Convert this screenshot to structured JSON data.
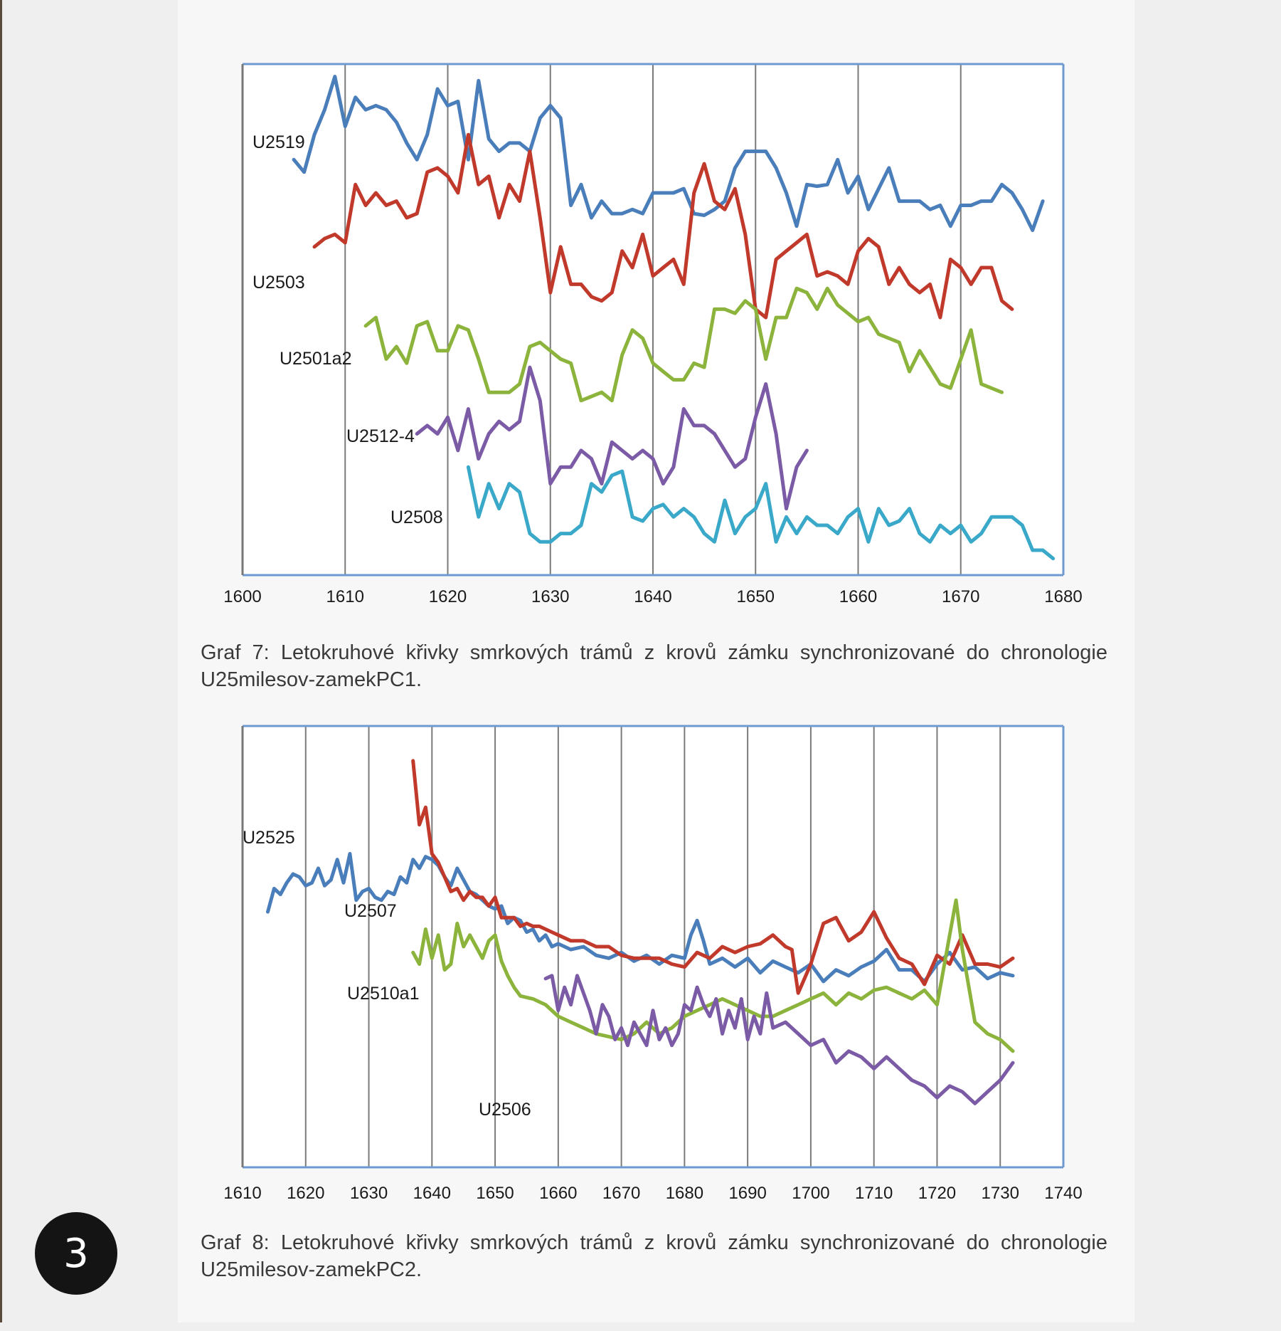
{
  "badge": "3",
  "chart_data": [
    {
      "type": "line",
      "title": "",
      "xlabel": "",
      "ylabel": "",
      "xlim": [
        1600,
        1680
      ],
      "xticks": [
        1600,
        1610,
        1620,
        1630,
        1640,
        1650,
        1660,
        1670,
        1680
      ],
      "grid": "vertical",
      "legend": "labels placed next to each curve",
      "series": [
        {
          "name": "U2519",
          "color": "#4a7ebb",
          "x_start": 1605,
          "values": [
            1.1,
            0.95,
            1.4,
            1.7,
            2.1,
            1.5,
            1.85,
            1.7,
            1.75,
            1.7,
            1.55,
            1.3,
            1.1,
            1.4,
            1.95,
            1.75,
            1.8,
            1.1,
            2.05,
            1.35,
            1.2,
            1.3,
            1.3,
            1.2,
            1.6,
            1.75,
            1.6,
            0.55,
            0.8,
            0.4,
            0.6,
            0.45,
            0.45,
            0.5,
            0.45,
            0.7,
            0.7,
            0.7,
            0.75,
            0.45,
            0.43,
            0.5,
            0.6,
            1.0,
            1.2,
            1.2,
            1.2,
            1.0,
            0.7,
            0.3,
            0.8,
            0.78,
            0.8,
            1.1,
            0.7,
            0.9,
            0.5,
            0.75,
            1.0,
            0.6,
            0.6,
            0.6,
            0.5,
            0.55,
            0.3,
            0.55,
            0.55,
            0.6,
            0.6,
            0.8,
            0.7,
            0.5,
            0.25,
            0.6
          ]
        },
        {
          "name": "U2503",
          "color": "#c0392b",
          "x_start": 1607,
          "values": [
            0.05,
            0.15,
            0.2,
            0.1,
            0.8,
            0.55,
            0.7,
            0.55,
            0.6,
            0.4,
            0.45,
            0.95,
            1.0,
            0.9,
            0.7,
            1.4,
            0.8,
            0.9,
            0.4,
            0.8,
            0.6,
            1.2,
            0.4,
            -0.5,
            0.05,
            -0.4,
            -0.4,
            -0.55,
            -0.6,
            -0.5,
            0.0,
            -0.2,
            0.2,
            -0.3,
            -0.2,
            -0.1,
            -0.4,
            0.7,
            1.05,
            0.6,
            0.5,
            0.75,
            0.2,
            -0.7,
            -0.8,
            -0.1,
            0.0,
            0.1,
            0.2,
            -0.3,
            -0.25,
            -0.3,
            -0.4,
            0.0,
            0.15,
            0.05,
            -0.4,
            -0.2,
            -0.4,
            -0.5,
            -0.4,
            -0.8,
            -0.1,
            -0.2,
            -0.4,
            -0.2,
            -0.2,
            -0.6,
            -0.7
          ]
        },
        {
          "name": "U2501a2",
          "color": "#8cb43c",
          "x_start": 1612,
          "values": [
            -0.9,
            -0.8,
            -1.3,
            -1.15,
            -1.35,
            -0.9,
            -0.85,
            -1.2,
            -1.2,
            -0.9,
            -0.95,
            -1.3,
            -1.7,
            -1.7,
            -1.7,
            -1.6,
            -1.15,
            -1.1,
            -1.2,
            -1.3,
            -1.35,
            -1.8,
            -1.75,
            -1.7,
            -1.8,
            -1.25,
            -0.95,
            -1.05,
            -1.35,
            -1.45,
            -1.55,
            -1.55,
            -1.35,
            -1.4,
            -0.7,
            -0.7,
            -0.75,
            -0.6,
            -0.7,
            -1.3,
            -0.8,
            -0.8,
            -0.45,
            -0.5,
            -0.7,
            -0.45,
            -0.65,
            -0.75,
            -0.85,
            -0.8,
            -1.0,
            -1.05,
            -1.1,
            -1.45,
            -1.2,
            -1.4,
            -1.6,
            -1.65,
            -1.3,
            -0.95,
            -1.6,
            -1.65,
            -1.7
          ]
        },
        {
          "name": "U2512-4",
          "color": "#7b5aa6",
          "x_start": 1617,
          "values": [
            -2.2,
            -2.1,
            -2.2,
            -2.0,
            -2.4,
            -1.9,
            -2.5,
            -2.2,
            -2.05,
            -2.15,
            -2.05,
            -1.4,
            -1.8,
            -2.8,
            -2.6,
            -2.6,
            -2.4,
            -2.5,
            -2.8,
            -2.3,
            -2.4,
            -2.5,
            -2.4,
            -2.5,
            -2.8,
            -2.6,
            -1.9,
            -2.1,
            -2.1,
            -2.2,
            -2.4,
            -2.6,
            -2.5,
            -2.0,
            -1.6,
            -2.2,
            -3.1,
            -2.6,
            -2.4
          ]
        },
        {
          "name": "U2508",
          "color": "#3aa8c8",
          "x_start": 1622,
          "values": [
            -2.6,
            -3.2,
            -2.8,
            -3.1,
            -2.8,
            -2.9,
            -3.4,
            -3.5,
            -3.5,
            -3.4,
            -3.4,
            -3.3,
            -2.8,
            -2.9,
            -2.7,
            -2.65,
            -3.2,
            -3.25,
            -3.1,
            -3.05,
            -3.2,
            -3.1,
            -3.2,
            -3.4,
            -3.5,
            -3.0,
            -3.4,
            -3.2,
            -3.1,
            -2.8,
            -3.5,
            -3.2,
            -3.4,
            -3.2,
            -3.3,
            -3.3,
            -3.4,
            -3.2,
            -3.1,
            -3.5,
            -3.1,
            -3.3,
            -3.25,
            -3.1,
            -3.4,
            -3.5,
            -3.3,
            -3.4,
            -3.3,
            -3.5,
            -3.4,
            -3.2,
            -3.2,
            -3.2,
            -3.3,
            -3.6,
            -3.6,
            -3.7
          ]
        }
      ],
      "annotations": [
        "U2519",
        "U2503",
        "U2501a2",
        "U2512-4",
        "U2508"
      ],
      "caption_line1": "Graf 7: Letokruhové křivky smrkových trámů z krovů zámku synchronizované do chronologie",
      "caption_line2": "U25milesov-zamekPC1."
    },
    {
      "type": "line",
      "title": "",
      "xlabel": "",
      "ylabel": "",
      "xlim": [
        1610,
        1740
      ],
      "xticks": [
        1610,
        1620,
        1630,
        1640,
        1650,
        1660,
        1670,
        1680,
        1690,
        1700,
        1710,
        1720,
        1730,
        1740
      ],
      "grid": "vertical",
      "legend": "labels placed next to each curve",
      "series": [
        {
          "name": "U2525",
          "color": "#4a7ebb",
          "x": [
            1614,
            1615,
            1616,
            1617,
            1618,
            1619,
            1620,
            1621,
            1622,
            1623,
            1624,
            1625,
            1626,
            1627,
            1628,
            1629,
            1630,
            1631,
            1632,
            1633,
            1634,
            1635,
            1636,
            1637,
            1638,
            1639,
            1640,
            1641,
            1642,
            1643,
            1644,
            1645,
            1646,
            1647,
            1648,
            1649,
            1650,
            1651,
            1652,
            1653,
            1654,
            1655,
            1656,
            1657,
            1658,
            1659,
            1660,
            1662,
            1664,
            1666,
            1668,
            1670,
            1672,
            1674,
            1676,
            1678,
            1680,
            1681,
            1682,
            1683,
            1684,
            1686,
            1688,
            1690,
            1692,
            1694,
            1696,
            1698,
            1700,
            1702,
            1704,
            1706,
            1708,
            1710,
            1712,
            1714,
            1716,
            1718,
            1720,
            1722,
            1724,
            1726,
            1728,
            1730,
            1732
          ],
          "y": [
            48,
            56,
            54,
            58,
            61,
            60,
            57,
            58,
            63,
            57,
            59,
            66,
            58,
            68,
            52,
            55,
            56,
            53,
            52,
            55,
            54,
            60,
            58,
            66,
            63,
            67,
            66,
            64,
            60,
            57,
            63,
            59,
            55,
            54,
            52,
            50,
            49,
            50,
            44,
            46,
            45,
            41,
            42,
            38,
            40,
            36,
            37,
            35,
            36,
            33,
            32,
            34,
            31,
            33,
            30,
            33,
            32,
            40,
            45,
            38,
            30,
            32,
            29,
            32,
            27,
            31,
            29,
            27,
            30,
            24,
            28,
            26,
            29,
            31,
            35,
            28,
            28,
            24,
            30,
            34,
            28,
            29,
            25,
            27,
            26
          ]
        },
        {
          "name": "U2507",
          "color": "#c0392b",
          "x": [
            1637,
            1638,
            1639,
            1640,
            1641,
            1642,
            1643,
            1644,
            1645,
            1646,
            1647,
            1648,
            1649,
            1650,
            1651,
            1652,
            1653,
            1654,
            1655,
            1656,
            1657,
            1658,
            1659,
            1660,
            1662,
            1664,
            1666,
            1668,
            1670,
            1672,
            1674,
            1676,
            1678,
            1680,
            1682,
            1684,
            1686,
            1688,
            1690,
            1692,
            1694,
            1696,
            1697,
            1698,
            1700,
            1702,
            1704,
            1706,
            1708,
            1710,
            1712,
            1714,
            1716,
            1718,
            1720,
            1722,
            1724,
            1726,
            1728,
            1730,
            1732
          ],
          "y": [
            100,
            78,
            84,
            68,
            65,
            60,
            55,
            56,
            52,
            55,
            53,
            53,
            50,
            53,
            46,
            46,
            46,
            43,
            44,
            43,
            43,
            42,
            41,
            40,
            38,
            38,
            36,
            36,
            33,
            32,
            32,
            32,
            30,
            29,
            34,
            32,
            36,
            34,
            36,
            37,
            40,
            36,
            35,
            20,
            30,
            44,
            46,
            38,
            41,
            48,
            39,
            32,
            30,
            23,
            33,
            30,
            40,
            30,
            30,
            29,
            32
          ]
        },
        {
          "name": "U2510a1",
          "color": "#8cb43c",
          "x": [
            1637,
            1638,
            1639,
            1640,
            1641,
            1642,
            1643,
            1644,
            1645,
            1646,
            1647,
            1648,
            1649,
            1650,
            1651,
            1652,
            1653,
            1654,
            1656,
            1658,
            1660,
            1662,
            1664,
            1666,
            1668,
            1670,
            1672,
            1674,
            1676,
            1678,
            1680,
            1682,
            1684,
            1686,
            1688,
            1690,
            1692,
            1694,
            1696,
            1698,
            1700,
            1702,
            1704,
            1706,
            1708,
            1710,
            1712,
            1714,
            1716,
            1718,
            1720,
            1722,
            1723,
            1724,
            1726,
            1728,
            1730,
            1732
          ],
          "y": [
            34,
            30,
            42,
            32,
            40,
            28,
            30,
            44,
            36,
            40,
            36,
            32,
            38,
            40,
            31,
            26,
            22,
            19,
            18,
            16,
            12,
            10,
            8,
            6,
            5,
            4,
            6,
            10,
            6,
            8,
            12,
            14,
            16,
            18,
            16,
            14,
            12,
            12,
            14,
            16,
            18,
            20,
            16,
            20,
            18,
            21,
            22,
            20,
            18,
            21,
            16,
            40,
            52,
            35,
            10,
            6,
            4,
            0
          ]
        },
        {
          "name": "U2506",
          "color": "#7b5aa6",
          "x": [
            1658,
            1659,
            1660,
            1661,
            1662,
            1663,
            1664,
            1665,
            1666,
            1667,
            1668,
            1669,
            1670,
            1671,
            1672,
            1673,
            1674,
            1675,
            1676,
            1677,
            1678,
            1679,
            1680,
            1681,
            1682,
            1683,
            1684,
            1685,
            1686,
            1687,
            1688,
            1689,
            1690,
            1691,
            1692,
            1693,
            1694,
            1696,
            1698,
            1700,
            1702,
            1704,
            1706,
            1708,
            1710,
            1712,
            1714,
            1716,
            1718,
            1720,
            1722,
            1724,
            1726,
            1728,
            1730,
            1732
          ],
          "y": [
            25,
            26,
            14,
            22,
            16,
            26,
            20,
            14,
            6,
            16,
            12,
            4,
            8,
            2,
            10,
            6,
            2,
            14,
            4,
            8,
            2,
            6,
            16,
            14,
            22,
            16,
            12,
            18,
            6,
            14,
            8,
            18,
            4,
            12,
            6,
            20,
            8,
            10,
            6,
            2,
            4,
            -4,
            0,
            -2,
            -6,
            -2,
            -6,
            -10,
            -12,
            -16,
            -12,
            -14,
            -18,
            -14,
            -10,
            -4
          ]
        }
      ],
      "annotations": [
        "U2525",
        "U2507",
        "U2510a1",
        "U2506"
      ],
      "caption_line1": "Graf 8: Letokruhové křivky smrkových trámů z krovů zámku synchronizované do chronologie",
      "caption_line2": "U25milesov-zamekPC2."
    }
  ]
}
